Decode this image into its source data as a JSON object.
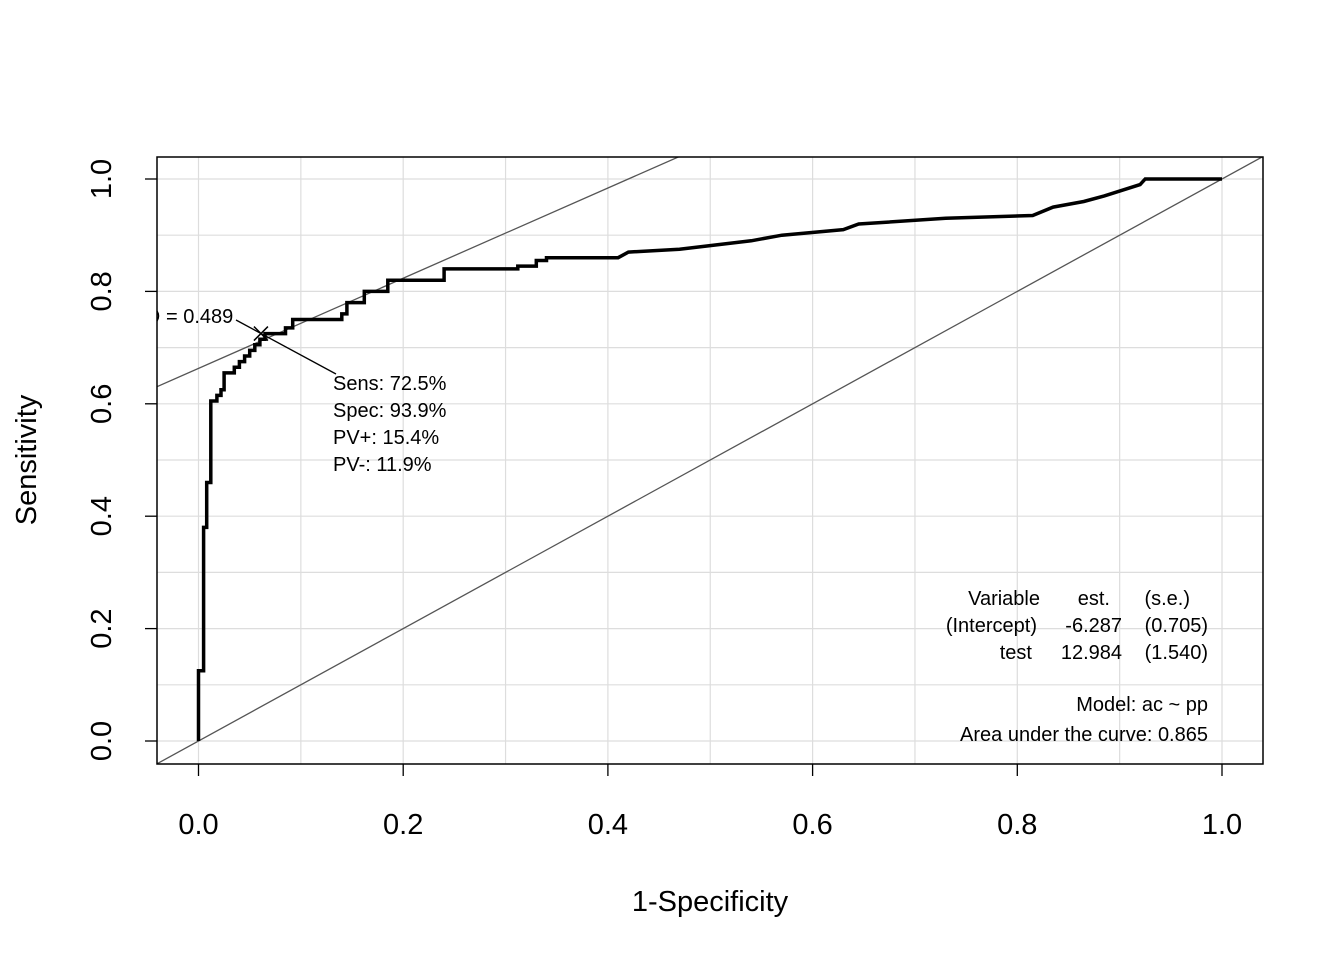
{
  "chart_data": {
    "type": "line",
    "xlabel": "1-Specificity",
    "ylabel": "Sensitivity",
    "xlim": [
      0.0,
      1.0
    ],
    "ylim": [
      0.0,
      1.0
    ],
    "x_ticks": [
      "0.0",
      "0.2",
      "0.4",
      "0.6",
      "0.8",
      "1.0"
    ],
    "y_ticks": [
      "0.0",
      "0.2",
      "0.4",
      "0.6",
      "0.8",
      "1.0"
    ],
    "grid": true,
    "roc_curve": {
      "x": [
        0.0,
        0.0,
        0.005,
        0.005,
        0.008,
        0.008,
        0.012,
        0.012,
        0.018,
        0.018,
        0.022,
        0.022,
        0.025,
        0.025,
        0.035,
        0.035,
        0.04,
        0.04,
        0.045,
        0.045,
        0.05,
        0.05,
        0.055,
        0.055,
        0.06,
        0.06,
        0.065,
        0.065,
        0.085,
        0.085,
        0.092,
        0.092,
        0.14,
        0.14,
        0.145,
        0.145,
        0.162,
        0.162,
        0.185,
        0.185,
        0.24,
        0.24,
        0.312,
        0.312,
        0.33,
        0.33,
        0.34,
        0.34,
        0.41,
        0.42,
        0.42,
        0.47,
        0.47,
        0.54,
        0.54,
        0.57,
        0.57,
        0.63,
        0.63,
        0.645,
        0.645,
        0.73,
        0.73,
        0.815,
        0.815,
        0.835,
        0.835,
        0.865,
        0.865,
        0.885,
        0.885,
        0.92,
        0.92,
        0.925,
        0.925,
        1.0
      ],
      "y": [
        0.0,
        0.125,
        0.125,
        0.38,
        0.38,
        0.46,
        0.46,
        0.605,
        0.605,
        0.615,
        0.615,
        0.625,
        0.625,
        0.655,
        0.655,
        0.665,
        0.665,
        0.675,
        0.675,
        0.685,
        0.685,
        0.695,
        0.695,
        0.705,
        0.705,
        0.715,
        0.715,
        0.725,
        0.725,
        0.735,
        0.735,
        0.75,
        0.75,
        0.76,
        0.76,
        0.78,
        0.78,
        0.8,
        0.8,
        0.82,
        0.82,
        0.84,
        0.84,
        0.845,
        0.845,
        0.855,
        0.855,
        0.86,
        0.86,
        0.87,
        0.87,
        0.875,
        0.875,
        0.89,
        0.89,
        0.9,
        0.9,
        0.91,
        0.91,
        0.92,
        0.92,
        0.93,
        0.93,
        0.935,
        0.935,
        0.95,
        0.95,
        0.96,
        0.96,
        0.97,
        0.97,
        0.99,
        0.99,
        1.0,
        1.0,
        1.0
      ]
    },
    "reference_lines": [
      {
        "x": [
          0.0,
          1.0
        ],
        "y": [
          0.0,
          1.0
        ]
      },
      {
        "x": [
          0.0,
          0.42
        ],
        "y": [
          0.663,
          1.0
        ]
      }
    ],
    "cutoff_point": {
      "x": 0.061,
      "y": 0.725
    },
    "annotations": {
      "cutoff_label": "= 0.489",
      "sens": "Sens: 72.5%",
      "spec": "Spec: 93.9%",
      "pv_plus": "PV+: 15.4%",
      "pv_minus": "PV-: 11.9%"
    },
    "coef_table": {
      "headers": [
        "Variable",
        "est.",
        "(s.e.)"
      ],
      "rows": [
        [
          "(Intercept)",
          "-6.287",
          "(0.705)"
        ],
        [
          "test",
          "12.984",
          "(1.540)"
        ]
      ],
      "model": "Model:  ac ~ pp",
      "auc": "Area under the curve: 0.865"
    },
    "colors": {
      "curve": "#000000",
      "reference": "#555555",
      "grid": "#dddddd",
      "frame": "#000000"
    }
  }
}
